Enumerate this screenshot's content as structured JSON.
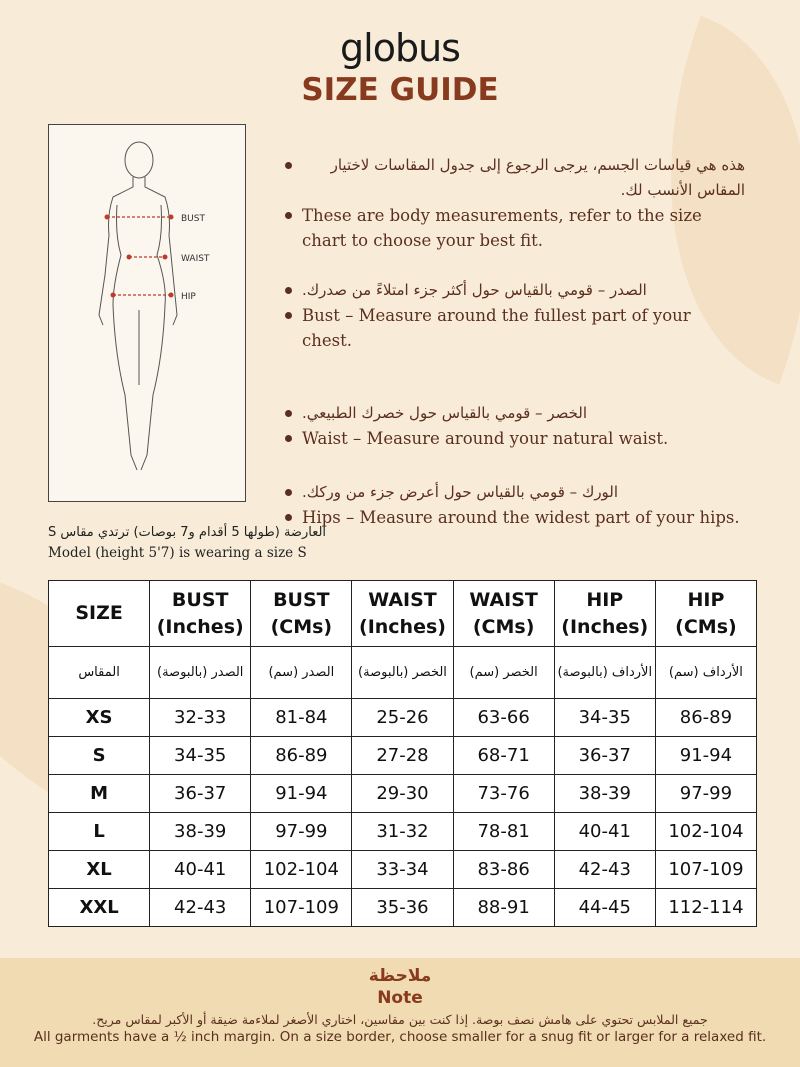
{
  "brand": "globus",
  "title": "SIZE GUIDE",
  "figure": {
    "labels": [
      "BUST",
      "WAIST",
      "HIP"
    ]
  },
  "bullets": [
    {
      "ar": "هذه هي قياسات الجسم، يرجى الرجوع إلى جدول المقاسات لاختيار المقاس الأنسب لك.",
      "en": "These are body measurements, refer to the size chart to choose your best fit."
    },
    {
      "ar": "الصدر – قومي بالقياس حول أكثر جزء امتلاءً من صدرك.",
      "en": "Bust – Measure around the fullest part of your chest."
    },
    {
      "ar": "الخصر – قومي بالقياس حول خصرك الطبيعي.",
      "en": "Waist – Measure around your natural waist."
    },
    {
      "ar": "الورك – قومي بالقياس حول أعرض جزء من وركك.",
      "en": "Hips – Measure around the widest part of your hips."
    }
  ],
  "model": {
    "ar": "العارضة (طولها 5 أقدام و7 بوصات) ترتدي مقاس S",
    "en": "Model (height 5'7) is wearing a size S"
  },
  "table": {
    "headers_en": [
      "SIZE",
      "BUST (Inches)",
      "BUST (CMs)",
      "WAIST (Inches)",
      "WAIST (CMs)",
      "HIP (Inches)",
      "HIP (CMs)"
    ],
    "headers_ar": [
      "المقاس",
      "الصدر (بالبوصة)",
      "الصدر (سم)",
      "الخصر (بالبوصة)",
      "الخصر (سم)",
      "الأرداف (بالبوصة)",
      "الأرداف (سم)"
    ],
    "rows": [
      [
        "XS",
        "32-33",
        "81-84",
        "25-26",
        "63-66",
        "34-35",
        "86-89"
      ],
      [
        "S",
        "34-35",
        "86-89",
        "27-28",
        "68-71",
        "36-37",
        "91-94"
      ],
      [
        "M",
        "36-37",
        "91-94",
        "29-30",
        "73-76",
        "38-39",
        "97-99"
      ],
      [
        "L",
        "38-39",
        "97-99",
        "31-32",
        "78-81",
        "40-41",
        "102-104"
      ],
      [
        "XL",
        "40-41",
        "102-104",
        "33-34",
        "83-86",
        "42-43",
        "107-109"
      ],
      [
        "XXL",
        "42-43",
        "107-109",
        "35-36",
        "88-91",
        "44-45",
        "112-114"
      ]
    ]
  },
  "note": {
    "title_ar": "ملاحظة",
    "title_en": "Note",
    "text_ar": "جميع الملابس تحتوي على هامش نصف بوصة. إذا كنت بين مقاسين، اختاري الأصغر لملاءمة ضيقة أو الأكبر لمقاس مريح.",
    "text_en": "All garments have a ½ inch margin. On a size border, choose smaller for a snug fit or larger for a relaxed fit."
  },
  "colors": {
    "accent": "#873a1e",
    "background": "#f8ecd9",
    "note_band": "#f0dbb3",
    "measure_line": "#c0392b"
  }
}
